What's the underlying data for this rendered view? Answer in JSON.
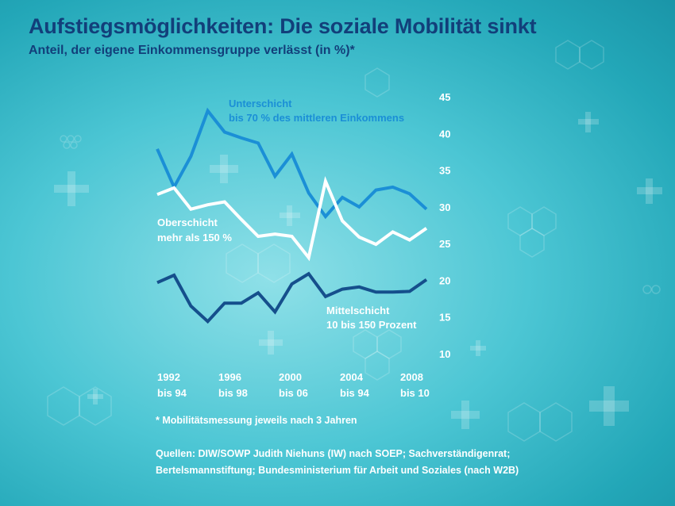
{
  "title": "Aufstiegsmöglichkeiten: Die soziale Mobilität sinkt",
  "subtitle": "Anteil, der eigene Einkommensgruppe verlässt (in %)*",
  "footnote": "* Mobilitätsmessung jeweils nach 3 Jahren",
  "sources": [
    "Quellen: DIW/SOWP Judith Niehuns (IW) nach SOEP;  Sachverständigenrat;",
    "Bertelsmannstiftung; Bundesministerium für Arbeit und Soziales (nach W2B)"
  ],
  "colors": {
    "background": "#3fbfce",
    "title": "#123f7a",
    "unterschicht": "#1b8fd6",
    "oberschicht": "#ffffff",
    "mittelschicht": "#154f8c"
  },
  "chart_data": {
    "type": "line",
    "ylim": [
      10,
      45
    ],
    "y_ticks": [
      45,
      40,
      35,
      30,
      25,
      20,
      15,
      10
    ],
    "grid": false,
    "x_tick_labels": [
      {
        "line1": "1992",
        "line2": "bis 94"
      },
      {
        "line1": "1996",
        "line2": "bis 98"
      },
      {
        "line1": "2000",
        "line2": "bis 06"
      },
      {
        "line1": "2004",
        "line2": "bis 94"
      },
      {
        "line1": "2008",
        "line2": "bis 10"
      }
    ],
    "series": [
      {
        "name": "Unterschicht",
        "description": "bis 70 % des mittleren Einkommens",
        "color": "#1b8fd6",
        "values": [
          38,
          32.8,
          37,
          43.2,
          40.3,
          39.5,
          38.8,
          34.3,
          37.3,
          32,
          28.8,
          31.4,
          30.1,
          32.4,
          32.8,
          31.9,
          29.8
        ]
      },
      {
        "name": "Oberschicht",
        "description": "mehr als 150 %",
        "color": "#ffffff",
        "values": [
          31.8,
          32.7,
          29.8,
          30.4,
          30.8,
          28.4,
          26.1,
          26.4,
          26.1,
          23.2,
          33.6,
          28.2,
          26,
          25,
          26.7,
          25.6,
          27.2
        ]
      },
      {
        "name": "Mittelschicht",
        "description": "10 bis 150 Prozent",
        "color": "#154f8c",
        "values": [
          19.8,
          20.8,
          16.6,
          14.5,
          17,
          17,
          18.4,
          15.8,
          19.6,
          21,
          17.9,
          18.9,
          19.2,
          18.5,
          18.5,
          18.6,
          20.2
        ]
      }
    ]
  }
}
